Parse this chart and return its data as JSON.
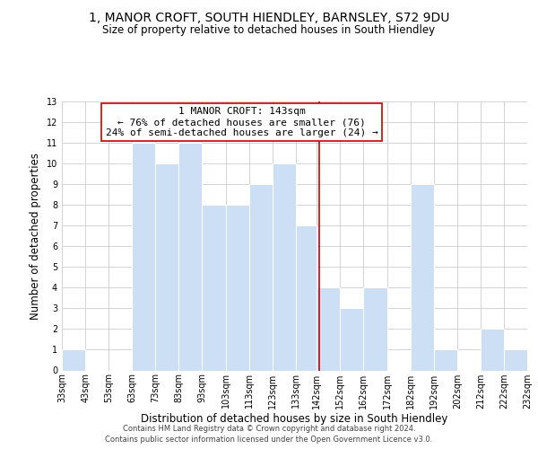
{
  "title": "1, MANOR CROFT, SOUTH HIENDLEY, BARNSLEY, S72 9DU",
  "subtitle": "Size of property relative to detached houses in South Hiendley",
  "xlabel": "Distribution of detached houses by size in South Hiendley",
  "ylabel": "Number of detached properties",
  "bin_edges": [
    33,
    43,
    53,
    63,
    73,
    83,
    93,
    103,
    113,
    123,
    133,
    142,
    152,
    162,
    172,
    182,
    192,
    202,
    212,
    222,
    232
  ],
  "counts": [
    1,
    0,
    0,
    11,
    10,
    11,
    8,
    8,
    9,
    10,
    7,
    4,
    3,
    4,
    0,
    9,
    1,
    0,
    2,
    1
  ],
  "property_value": 143,
  "bar_color": "#ccdff5",
  "bar_edge_color": "#ffffff",
  "vline_color": "#cc0000",
  "annotation_line1": "1 MANOR CROFT: 143sqm",
  "annotation_line2": "← 76% of detached houses are smaller (76)",
  "annotation_line3": "24% of semi-detached houses are larger (24) →",
  "annotation_box_color": "#ffffff",
  "annotation_box_edge_color": "#cc0000",
  "ylim": [
    0,
    13
  ],
  "yticks": [
    0,
    1,
    2,
    3,
    4,
    5,
    6,
    7,
    8,
    9,
    10,
    11,
    12,
    13
  ],
  "tick_labels": [
    "33sqm",
    "43sqm",
    "53sqm",
    "63sqm",
    "73sqm",
    "83sqm",
    "93sqm",
    "103sqm",
    "113sqm",
    "123sqm",
    "133sqm",
    "142sqm",
    "152sqm",
    "162sqm",
    "172sqm",
    "182sqm",
    "192sqm",
    "202sqm",
    "212sqm",
    "222sqm",
    "232sqm"
  ],
  "footer_line1": "Contains HM Land Registry data © Crown copyright and database right 2024.",
  "footer_line2": "Contains public sector information licensed under the Open Government Licence v3.0.",
  "background_color": "#ffffff",
  "grid_color": "#cccccc",
  "title_fontsize": 10,
  "subtitle_fontsize": 8.5,
  "axis_label_fontsize": 8.5,
  "tick_fontsize": 7,
  "footer_fontsize": 6,
  "annotation_fontsize": 8
}
